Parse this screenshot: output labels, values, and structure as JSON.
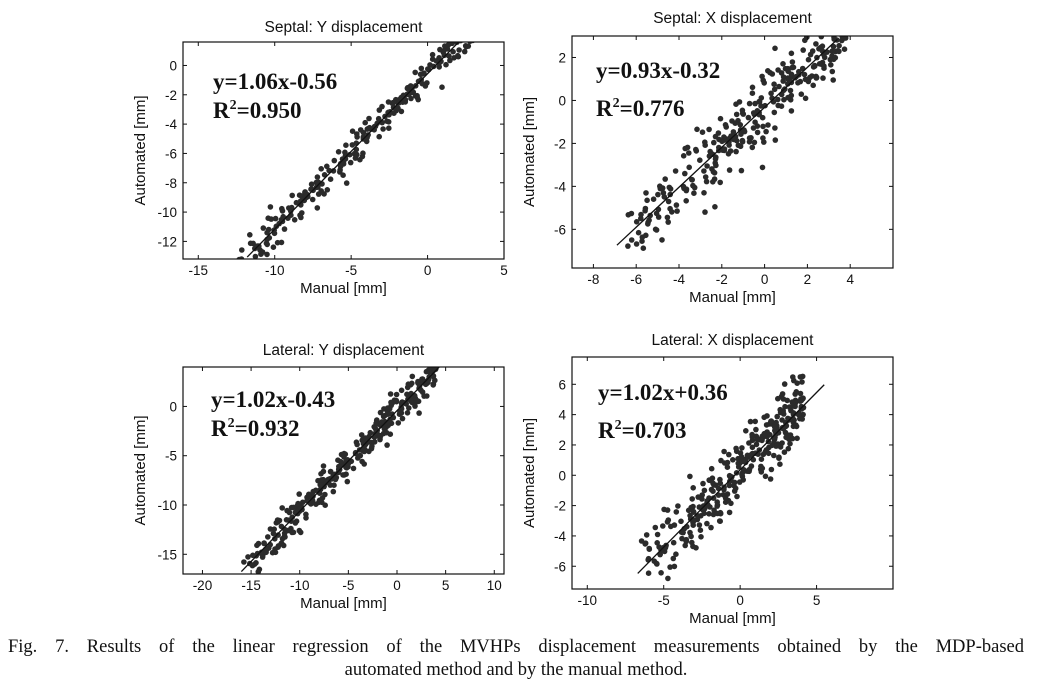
{
  "chart_data": [
    {
      "type": "scatter",
      "title": "Septal: Y displacement",
      "xlabel": "Manual [mm]",
      "ylabel": "Automated [mm]",
      "xlim": [
        -16,
        5
      ],
      "ylim": [
        -13.2,
        1.6
      ],
      "xticks": [
        -15,
        -10,
        -5,
        0,
        5
      ],
      "yticks": [
        0,
        -2,
        -4,
        -6,
        -8,
        -10,
        -12
      ],
      "equation": "y=1.06x-0.56",
      "r2": "=0.950",
      "fit": {
        "slope": 1.06,
        "intercept": -0.56,
        "x": [
          -11.8,
          2.1
        ]
      },
      "n_points": 260,
      "x_range": [
        -13,
        3
      ],
      "noise": 0.55
    },
    {
      "type": "scatter",
      "title": "Septal: X displacement",
      "xlabel": "Manual [mm]",
      "ylabel": "Automated [mm]",
      "xlim": [
        -9,
        6
      ],
      "ylim": [
        -7.8,
        3.0
      ],
      "xticks": [
        -8,
        -6,
        -4,
        -2,
        0,
        2,
        4
      ],
      "yticks": [
        2,
        0,
        -2,
        -4,
        -6
      ],
      "equation": "y=0.93x-0.32",
      "r2": "=0.776",
      "fit": {
        "slope": 0.93,
        "intercept": -0.32,
        "x": [
          -6.9,
          3.4
        ]
      },
      "n_points": 300,
      "x_range": [
        -6.5,
        3.8
      ],
      "noise": 0.9
    },
    {
      "type": "scatter",
      "title": "Lateral: Y displacement",
      "xlabel": "Manual [mm]",
      "ylabel": "Automated [mm]",
      "xlim": [
        -22,
        11
      ],
      "ylim": [
        -17,
        4
      ],
      "xticks": [
        -20,
        -15,
        -10,
        -5,
        0,
        5,
        10
      ],
      "yticks": [
        0,
        -5,
        -10,
        -15
      ],
      "equation": "y=1.02x-0.43",
      "r2": "=0.932",
      "fit": {
        "slope": 1.02,
        "intercept": -0.43,
        "x": [
          -16,
          4.5
        ]
      },
      "n_points": 320,
      "x_range": [
        -16,
        4
      ],
      "noise": 0.9
    },
    {
      "type": "scatter",
      "title": "Lateral: X displacement",
      "xlabel": "Manual [mm]",
      "ylabel": "Automated [mm]",
      "xlim": [
        -11,
        10
      ],
      "ylim": [
        -7.5,
        7.8
      ],
      "xticks": [
        -10,
        -5,
        0,
        5
      ],
      "yticks": [
        6,
        4,
        2,
        0,
        -2,
        -4,
        -6
      ],
      "equation": "y=1.02x+0.36",
      "r2": "=0.703",
      "fit": {
        "slope": 1.02,
        "intercept": 0.36,
        "x": [
          -6.7,
          5.5
        ]
      },
      "n_points": 320,
      "x_range": [
        -6.5,
        4.2
      ],
      "noise": 1.1
    }
  ],
  "caption": {
    "line1": "Fig. 7. Results of the linear regression of the MVHPs displacement measurements obtained by the MDP-based",
    "line2": "automated method and by the manual method."
  },
  "colors": {
    "points": "#2b2b2b",
    "axes": "#111111"
  }
}
